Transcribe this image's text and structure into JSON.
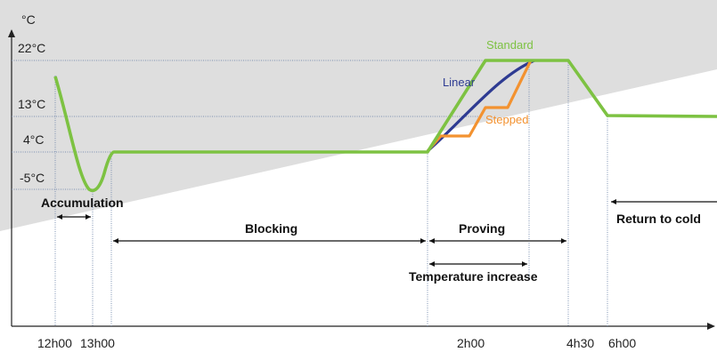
{
  "chart_data": {
    "type": "line",
    "ylabel": "°C",
    "y_ticks": [
      "22°C",
      "13°C",
      "4°C",
      "-5°C"
    ],
    "y_values": [
      22,
      13,
      4,
      -5
    ],
    "x_ticks": [
      "12h00",
      "13h00",
      "2h00",
      "4h30",
      "6h00"
    ],
    "phases": [
      "Accumulation",
      "Blocking",
      "Proving",
      "Temperature increase",
      "Return to cold"
    ],
    "series": [
      {
        "name": "Standard",
        "color": "#7dc242"
      },
      {
        "name": "Linear",
        "color": "#2e3b92"
      },
      {
        "name": "Stepped",
        "color": "#f39230"
      }
    ],
    "colors": {
      "background_band": "#dddddd",
      "axis": "#222222",
      "guide": "#7a8fb0"
    }
  }
}
